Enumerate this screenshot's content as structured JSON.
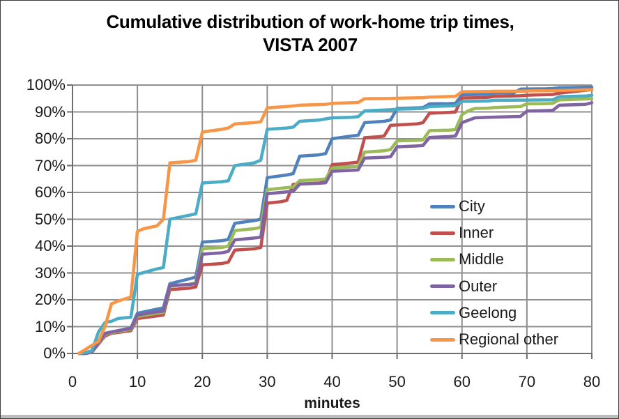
{
  "title": {
    "line1": "Cumulative distribution of work-home trip times,",
    "line2": "VISTA 2007"
  },
  "chart_data": {
    "type": "line",
    "title": "Cumulative distribution of work-home trip times, VISTA 2007",
    "xlabel": "minutes",
    "ylabel": "",
    "xlim": [
      0,
      80
    ],
    "ylim": [
      0,
      100
    ],
    "x_ticks": [
      0,
      10,
      20,
      30,
      40,
      50,
      60,
      70,
      80
    ],
    "y_ticks": [
      0,
      10,
      20,
      30,
      40,
      50,
      60,
      70,
      80,
      90,
      100
    ],
    "y_tick_labels": [
      "0%",
      "10%",
      "20%",
      "30%",
      "40%",
      "50%",
      "60%",
      "70%",
      "80%",
      "90%",
      "100%"
    ],
    "grid": true,
    "legend_position": "inside-right",
    "colors": {
      "grid": "#8f8f8f",
      "axis": "#6e6e6e",
      "text": "#1a1a1a"
    },
    "series": [
      {
        "name": "City",
        "color": "#4F81BD",
        "points": [
          [
            1,
            0
          ],
          [
            2,
            0
          ],
          [
            3,
            0.5
          ],
          [
            4,
            4
          ],
          [
            5,
            7.5
          ],
          [
            6,
            8
          ],
          [
            9,
            9.5
          ],
          [
            10,
            15
          ],
          [
            13,
            16.5
          ],
          [
            14,
            17
          ],
          [
            15,
            26
          ],
          [
            18,
            27.8
          ],
          [
            19,
            28.5
          ],
          [
            20,
            41.5
          ],
          [
            23,
            42
          ],
          [
            24,
            42.5
          ],
          [
            25,
            48.5
          ],
          [
            28,
            49.5
          ],
          [
            29,
            50
          ],
          [
            30,
            65.5
          ],
          [
            33,
            66.5
          ],
          [
            34,
            67
          ],
          [
            35,
            73.5
          ],
          [
            38,
            74
          ],
          [
            39,
            74.5
          ],
          [
            40,
            80
          ],
          [
            43,
            81
          ],
          [
            44,
            81.3
          ],
          [
            45,
            86
          ],
          [
            48,
            86.5
          ],
          [
            49,
            87
          ],
          [
            50,
            91.3
          ],
          [
            53,
            91.5
          ],
          [
            54,
            91.6
          ],
          [
            55,
            93
          ],
          [
            58,
            93.1
          ],
          [
            59,
            93.2
          ],
          [
            60,
            96.4
          ],
          [
            63,
            96.5
          ],
          [
            64,
            96.6
          ],
          [
            65,
            97
          ],
          [
            68,
            97.1
          ],
          [
            69,
            98.5
          ],
          [
            73,
            98.6
          ],
          [
            74,
            98.7
          ],
          [
            75,
            99
          ],
          [
            80,
            99.2
          ]
        ]
      },
      {
        "name": "Inner",
        "color": "#C0504D",
        "points": [
          [
            1,
            0
          ],
          [
            2,
            0
          ],
          [
            3,
            0.5
          ],
          [
            4,
            3.5
          ],
          [
            5,
            6.5
          ],
          [
            6,
            7.5
          ],
          [
            9,
            8.5
          ],
          [
            10,
            13
          ],
          [
            13,
            14
          ],
          [
            14,
            14.3
          ],
          [
            15,
            23.8
          ],
          [
            18,
            24.3
          ],
          [
            19,
            24.8
          ],
          [
            20,
            33
          ],
          [
            23,
            33.5
          ],
          [
            24,
            34
          ],
          [
            25,
            38.5
          ],
          [
            28,
            39
          ],
          [
            29,
            39.5
          ],
          [
            30,
            56
          ],
          [
            32,
            56.5
          ],
          [
            33,
            57
          ],
          [
            34,
            63
          ],
          [
            38,
            63.5
          ],
          [
            39,
            64
          ],
          [
            40,
            70.3
          ],
          [
            43,
            71
          ],
          [
            44,
            71.3
          ],
          [
            45,
            80.4
          ],
          [
            47,
            80.7
          ],
          [
            48,
            81
          ],
          [
            49,
            85
          ],
          [
            53,
            85.5
          ],
          [
            54,
            86
          ],
          [
            55,
            89.5
          ],
          [
            58,
            89.8
          ],
          [
            59,
            90
          ],
          [
            60,
            95.2
          ],
          [
            63,
            95.3
          ],
          [
            64,
            95.4
          ],
          [
            65,
            95.8
          ],
          [
            69,
            96
          ],
          [
            70,
            96.2
          ],
          [
            74,
            96.5
          ],
          [
            75,
            97
          ],
          [
            80,
            98.3
          ]
        ]
      },
      {
        "name": "Middle",
        "color": "#9BBB59",
        "points": [
          [
            1,
            0
          ],
          [
            2,
            0
          ],
          [
            3,
            0.5
          ],
          [
            4,
            3.8
          ],
          [
            5,
            7
          ],
          [
            6,
            7.8
          ],
          [
            9,
            9
          ],
          [
            10,
            13.8
          ],
          [
            13,
            15
          ],
          [
            14,
            15.3
          ],
          [
            15,
            25
          ],
          [
            18,
            25.8
          ],
          [
            19,
            26.3
          ],
          [
            20,
            39
          ],
          [
            23,
            39.5
          ],
          [
            24,
            40
          ],
          [
            25,
            45.8
          ],
          [
            28,
            46.5
          ],
          [
            29,
            47
          ],
          [
            30,
            61
          ],
          [
            33,
            61.8
          ],
          [
            34,
            62
          ],
          [
            35,
            64.4
          ],
          [
            38,
            64.8
          ],
          [
            39,
            65
          ],
          [
            40,
            69.1
          ],
          [
            43,
            69.5
          ],
          [
            44,
            69.8
          ],
          [
            45,
            75
          ],
          [
            48,
            75.5
          ],
          [
            49,
            76
          ],
          [
            50,
            79.2
          ],
          [
            53,
            79.4
          ],
          [
            54,
            79.6
          ],
          [
            55,
            83
          ],
          [
            58,
            83.2
          ],
          [
            59,
            83.4
          ],
          [
            60,
            89
          ],
          [
            61,
            90.5
          ],
          [
            62,
            91.3
          ],
          [
            64,
            91.4
          ],
          [
            65,
            91.6
          ],
          [
            69,
            92
          ],
          [
            70,
            93
          ],
          [
            73,
            93.1
          ],
          [
            74,
            93.2
          ],
          [
            75,
            94.5
          ],
          [
            80,
            94.9
          ]
        ]
      },
      {
        "name": "Outer",
        "color": "#8064A2",
        "points": [
          [
            1,
            0
          ],
          [
            2,
            0
          ],
          [
            3,
            0.5
          ],
          [
            4,
            4
          ],
          [
            5,
            7.3
          ],
          [
            6,
            8
          ],
          [
            9,
            9.3
          ],
          [
            10,
            14.3
          ],
          [
            13,
            15.5
          ],
          [
            14,
            15.8
          ],
          [
            15,
            25.3
          ],
          [
            18,
            25.7
          ],
          [
            19,
            26
          ],
          [
            20,
            37
          ],
          [
            23,
            37.5
          ],
          [
            24,
            38
          ],
          [
            25,
            42.3
          ],
          [
            28,
            43
          ],
          [
            29,
            43.3
          ],
          [
            30,
            59.5
          ],
          [
            33,
            60.2
          ],
          [
            34,
            60.4
          ],
          [
            35,
            63.1
          ],
          [
            38,
            63.4
          ],
          [
            39,
            63.6
          ],
          [
            40,
            67.9
          ],
          [
            43,
            68.2
          ],
          [
            44,
            68.4
          ],
          [
            45,
            72.8
          ],
          [
            48,
            73.1
          ],
          [
            49,
            73.3
          ],
          [
            50,
            77
          ],
          [
            53,
            77.3
          ],
          [
            54,
            77.5
          ],
          [
            55,
            80.5
          ],
          [
            58,
            80.8
          ],
          [
            59,
            81
          ],
          [
            60,
            86
          ],
          [
            62,
            87.8
          ],
          [
            64,
            88
          ],
          [
            69,
            88.3
          ],
          [
            70,
            90.3
          ],
          [
            73,
            90.5
          ],
          [
            74,
            90.6
          ],
          [
            75,
            92.5
          ],
          [
            79,
            92.8
          ],
          [
            80,
            93.4
          ]
        ]
      },
      {
        "name": "Geelong",
        "color": "#4BACC6",
        "points": [
          [
            1,
            0
          ],
          [
            2,
            0.3
          ],
          [
            3,
            1
          ],
          [
            4,
            8
          ],
          [
            5,
            11.5
          ],
          [
            6,
            12
          ],
          [
            7,
            13
          ],
          [
            9,
            13.5
          ],
          [
            10,
            29.5
          ],
          [
            13,
            31.5
          ],
          [
            14,
            32
          ],
          [
            15,
            50
          ],
          [
            18,
            51.5
          ],
          [
            19,
            52
          ],
          [
            20,
            63.5
          ],
          [
            23,
            64
          ],
          [
            24,
            64.3
          ],
          [
            25,
            70
          ],
          [
            28,
            71
          ],
          [
            29,
            72
          ],
          [
            30,
            83.5
          ],
          [
            33,
            84
          ],
          [
            34,
            84.3
          ],
          [
            35,
            86.5
          ],
          [
            38,
            87
          ],
          [
            39,
            87.4
          ],
          [
            40,
            87.8
          ],
          [
            43,
            88
          ],
          [
            44,
            88.2
          ],
          [
            45,
            90.4
          ],
          [
            49,
            90.8
          ],
          [
            50,
            91
          ],
          [
            53,
            91.2
          ],
          [
            54,
            91.3
          ],
          [
            55,
            92
          ],
          [
            58,
            92.2
          ],
          [
            59,
            92.3
          ],
          [
            60,
            93.9
          ],
          [
            63,
            94
          ],
          [
            64,
            94.1
          ],
          [
            65,
            94.3
          ],
          [
            69,
            94.4
          ],
          [
            70,
            94.4
          ],
          [
            74,
            94.5
          ],
          [
            75,
            95.7
          ],
          [
            79,
            95.9
          ],
          [
            80,
            96.2
          ]
        ]
      },
      {
        "name": "Regional other",
        "color": "#F79646",
        "points": [
          [
            1,
            0
          ],
          [
            3,
            3
          ],
          [
            4,
            4.5
          ],
          [
            5,
            10
          ],
          [
            6,
            18.5
          ],
          [
            7,
            19.5
          ],
          [
            9,
            21
          ],
          [
            10,
            45.5
          ],
          [
            11,
            46.5
          ],
          [
            13,
            47.5
          ],
          [
            14,
            50
          ],
          [
            15,
            71
          ],
          [
            18,
            71.5
          ],
          [
            19,
            72
          ],
          [
            20,
            82.5
          ],
          [
            23,
            83.5
          ],
          [
            24,
            84
          ],
          [
            25,
            85.5
          ],
          [
            28,
            86
          ],
          [
            29,
            86.3
          ],
          [
            30,
            91.5
          ],
          [
            33,
            92
          ],
          [
            34,
            92.2
          ],
          [
            35,
            92.5
          ],
          [
            39,
            92.8
          ],
          [
            40,
            93.2
          ],
          [
            43,
            93.4
          ],
          [
            44,
            93.5
          ],
          [
            45,
            94.9
          ],
          [
            49,
            95
          ],
          [
            50,
            95.1
          ],
          [
            54,
            95.3
          ],
          [
            55,
            95.5
          ],
          [
            59,
            95.8
          ],
          [
            60,
            97.5
          ],
          [
            64,
            97.6
          ],
          [
            65,
            97.7
          ],
          [
            69,
            97.7
          ],
          [
            70,
            97.8
          ],
          [
            74,
            97.9
          ],
          [
            75,
            98
          ],
          [
            80,
            98.3
          ]
        ]
      }
    ]
  }
}
